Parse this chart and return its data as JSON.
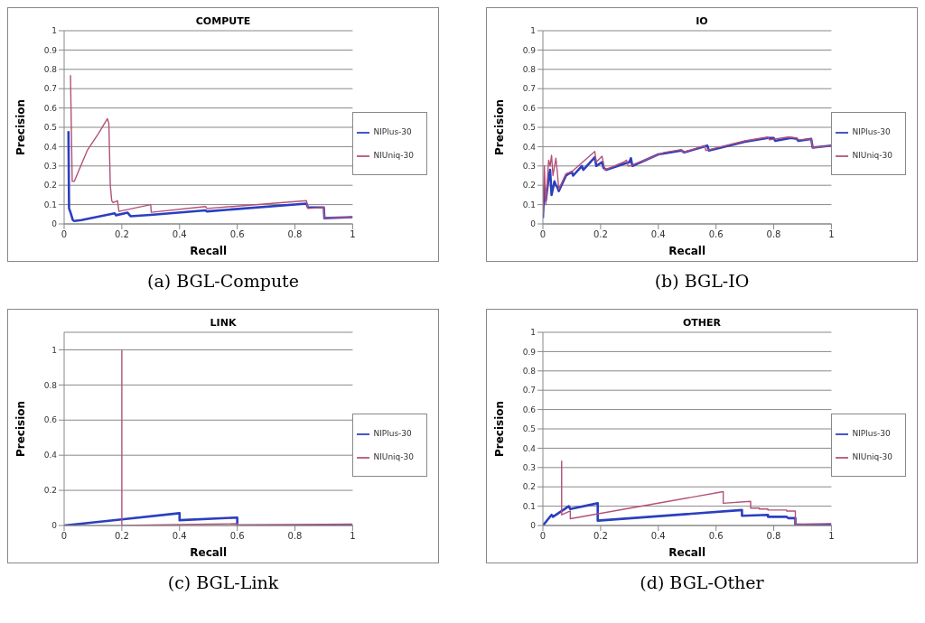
{
  "chart_data": [
    {
      "type": "line",
      "title": "COMPUTE",
      "xlabel": "Recall",
      "ylabel": "Precision",
      "annotations": [
        "(a) BGL-Compute"
      ],
      "xlim": [
        0,
        1
      ],
      "xticks": [
        0,
        0.2,
        0.4,
        0.6,
        0.8,
        1
      ],
      "ylim": [
        0,
        1
      ],
      "yticks": [
        0,
        0.1,
        0.2,
        0.3,
        0.4,
        0.5,
        0.6,
        0.7,
        0.8,
        0.9,
        1
      ],
      "grid": "y",
      "legend": "right",
      "marker": "none",
      "line_style": "solid",
      "series": [
        {
          "name": "NIPlus-30",
          "color": "#2b3fbf",
          "x": [
            0.015,
            0.017,
            0.022,
            0.03,
            0.035,
            0.06,
            0.175,
            0.18,
            0.22,
            0.23,
            0.3,
            0.49,
            0.495,
            0.84,
            0.845,
            0.9,
            0.902,
            1
          ],
          "values": [
            0.48,
            0.08,
            0.06,
            0.02,
            0.015,
            0.02,
            0.055,
            0.045,
            0.058,
            0.04,
            0.047,
            0.07,
            0.065,
            0.105,
            0.085,
            0.085,
            0.03,
            0.035
          ]
        },
        {
          "name": "NIUniq-30",
          "color": "#b3507a",
          "x": [
            0.022,
            0.028,
            0.035,
            0.08,
            0.12,
            0.15,
            0.155,
            0.16,
            0.165,
            0.17,
            0.185,
            0.19,
            0.3,
            0.302,
            0.49,
            0.495,
            0.84,
            0.845,
            0.9,
            0.902,
            1
          ],
          "values": [
            0.77,
            0.22,
            0.22,
            0.38,
            0.47,
            0.545,
            0.52,
            0.2,
            0.12,
            0.11,
            0.12,
            0.065,
            0.1,
            0.06,
            0.09,
            0.08,
            0.12,
            0.08,
            0.085,
            0.03,
            0.035
          ]
        }
      ]
    },
    {
      "type": "line",
      "title": "IO",
      "xlabel": "Recall",
      "ylabel": "Precision",
      "annotations": [
        "(b) BGL-IO"
      ],
      "xlim": [
        0,
        1
      ],
      "xticks": [
        0,
        0.2,
        0.4,
        0.6,
        0.8,
        1
      ],
      "ylim": [
        0,
        1
      ],
      "yticks": [
        0,
        0.1,
        0.2,
        0.3,
        0.4,
        0.5,
        0.6,
        0.7,
        0.8,
        0.9,
        1
      ],
      "grid": "y",
      "legend": "right",
      "marker": "none",
      "line_style": "solid",
      "series": [
        {
          "name": "NIPlus-30",
          "color": "#2b3fbf",
          "x": [
            0,
            0.005,
            0.01,
            0.02,
            0.025,
            0.03,
            0.04,
            0.045,
            0.05,
            0.055,
            0.08,
            0.1,
            0.105,
            0.135,
            0.14,
            0.18,
            0.185,
            0.205,
            0.21,
            0.22,
            0.3,
            0.305,
            0.31,
            0.4,
            0.48,
            0.49,
            0.57,
            0.575,
            0.7,
            0.78,
            0.8,
            0.805,
            0.86,
            0.88,
            0.885,
            0.93,
            0.935,
            1
          ],
          "values": [
            0.03,
            0.2,
            0.12,
            0.24,
            0.28,
            0.15,
            0.22,
            0.2,
            0.19,
            0.17,
            0.25,
            0.27,
            0.25,
            0.3,
            0.28,
            0.345,
            0.3,
            0.32,
            0.29,
            0.28,
            0.32,
            0.34,
            0.3,
            0.36,
            0.38,
            0.37,
            0.405,
            0.38,
            0.425,
            0.445,
            0.445,
            0.43,
            0.445,
            0.44,
            0.43,
            0.44,
            0.395,
            0.405
          ]
        },
        {
          "name": "NIUniq-30",
          "color": "#b3507a",
          "x": [
            0,
            0.005,
            0.01,
            0.02,
            0.025,
            0.03,
            0.035,
            0.045,
            0.05,
            0.055,
            0.08,
            0.1,
            0.13,
            0.18,
            0.185,
            0.205,
            0.215,
            0.28,
            0.29,
            0.295,
            0.3,
            0.42,
            0.48,
            0.485,
            0.56,
            0.565,
            0.7,
            0.78,
            0.785,
            0.85,
            0.88,
            0.885,
            0.93,
            0.935,
            1
          ],
          "values": [
            0.05,
            0.3,
            0.1,
            0.33,
            0.3,
            0.355,
            0.25,
            0.34,
            0.27,
            0.18,
            0.26,
            0.27,
            0.31,
            0.375,
            0.32,
            0.35,
            0.28,
            0.32,
            0.33,
            0.3,
            0.3,
            0.37,
            0.385,
            0.37,
            0.405,
            0.38,
            0.43,
            0.45,
            0.435,
            0.45,
            0.445,
            0.435,
            0.44,
            0.395,
            0.405
          ]
        }
      ]
    },
    {
      "type": "line",
      "title": "LINK",
      "xlabel": "Recall",
      "ylabel": "Precision",
      "annotations": [
        "(c) BGL-Link"
      ],
      "xlim": [
        0,
        1
      ],
      "xticks": [
        0,
        0.2,
        0.4,
        0.6,
        0.8,
        1
      ],
      "ylim": [
        0,
        1.1
      ],
      "yticks": [
        0,
        0.2,
        0.4,
        0.6,
        0.8,
        1
      ],
      "grid": "y",
      "legend": "right",
      "marker": "none",
      "line_style": "solid",
      "series": [
        {
          "name": "NIPlus-30",
          "color": "#2b3fbf",
          "x": [
            0,
            0.2,
            0.4,
            0.4,
            0.6,
            0.6,
            1
          ],
          "values": [
            0,
            0.035,
            0.07,
            0.03,
            0.045,
            0,
            0
          ]
        },
        {
          "name": "NIUniq-30",
          "color": "#b3507a",
          "x": [
            0.2,
            0.2,
            0.4,
            0.6,
            0.6,
            1
          ],
          "values": [
            1,
            0,
            0.005,
            0.01,
            0.003,
            0.008
          ]
        }
      ]
    },
    {
      "type": "line",
      "title": "OTHER",
      "xlabel": "Recall",
      "ylabel": "Precision",
      "annotations": [
        "(d) BGL-Other"
      ],
      "xlim": [
        0,
        1
      ],
      "xticks": [
        0,
        0.2,
        0.4,
        0.6,
        0.8,
        1
      ],
      "ylim": [
        0,
        1
      ],
      "yticks": [
        0,
        0.1,
        0.2,
        0.3,
        0.4,
        0.5,
        0.6,
        0.7,
        0.8,
        0.9,
        1
      ],
      "grid": "y",
      "legend": "right",
      "marker": "none",
      "line_style": "solid",
      "series": [
        {
          "name": "NIPlus-30",
          "color": "#2b3fbf",
          "x": [
            0,
            0.03,
            0.035,
            0.09,
            0.095,
            0.19,
            0.19,
            0.69,
            0.69,
            0.78,
            0.78,
            0.845,
            0.85,
            0.875,
            0.875,
            1
          ],
          "values": [
            0,
            0.055,
            0.045,
            0.1,
            0.085,
            0.115,
            0.025,
            0.08,
            0.05,
            0.055,
            0.045,
            0.045,
            0.038,
            0.038,
            0.005,
            0.005
          ]
        },
        {
          "name": "NIUniq-30",
          "color": "#b3507a",
          "x": [
            0.065,
            0.065,
            0.095,
            0.095,
            0.625,
            0.625,
            0.72,
            0.72,
            0.75,
            0.75,
            0.78,
            0.78,
            0.845,
            0.845,
            0.875,
            0.875,
            1
          ],
          "values": [
            0.335,
            0.055,
            0.075,
            0.035,
            0.175,
            0.115,
            0.125,
            0.09,
            0.09,
            0.085,
            0.085,
            0.08,
            0.08,
            0.075,
            0.075,
            0.005,
            0.01
          ]
        }
      ]
    }
  ]
}
